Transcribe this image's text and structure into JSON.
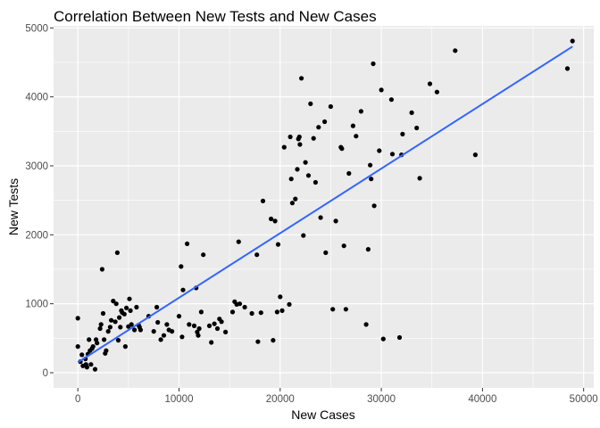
{
  "chart_data": {
    "type": "scatter",
    "title": "Correlation Between New Tests and New Cases",
    "xlabel": "New Cases",
    "ylabel": "New Tests",
    "xlim": [
      -2400,
      51000
    ],
    "ylim": [
      -220,
      5030
    ],
    "x_ticks": [
      0,
      10000,
      20000,
      30000,
      40000,
      50000
    ],
    "y_ticks": [
      0,
      1000,
      2000,
      3000,
      4000,
      5000
    ],
    "x_tick_labels": [
      "0",
      "10000",
      "20000",
      "30000",
      "40000",
      "50000"
    ],
    "y_tick_labels": [
      "0",
      "1000",
      "2000",
      "3000",
      "4000",
      "5000"
    ],
    "grid": true,
    "background": "#EBEBEB",
    "point_color": "#000000",
    "line_color": "#3366FF",
    "trend_line": {
      "x": [
        0,
        48900
      ],
      "y": [
        150,
        4730
      ]
    },
    "points": [
      [
        0,
        790
      ],
      [
        0,
        380
      ],
      [
        250,
        160
      ],
      [
        400,
        260
      ],
      [
        500,
        100
      ],
      [
        750,
        200
      ],
      [
        800,
        120
      ],
      [
        900,
        80
      ],
      [
        1000,
        270
      ],
      [
        1100,
        480
      ],
      [
        1200,
        320
      ],
      [
        1300,
        120
      ],
      [
        1400,
        350
      ],
      [
        1500,
        380
      ],
      [
        1700,
        50
      ],
      [
        1800,
        480
      ],
      [
        1900,
        430
      ],
      [
        2200,
        640
      ],
      [
        2300,
        700
      ],
      [
        2400,
        1500
      ],
      [
        2500,
        860
      ],
      [
        2600,
        480
      ],
      [
        2700,
        280
      ],
      [
        2800,
        320
      ],
      [
        3000,
        600
      ],
      [
        3200,
        660
      ],
      [
        3300,
        760
      ],
      [
        3500,
        1040
      ],
      [
        3700,
        740
      ],
      [
        3800,
        1000
      ],
      [
        3900,
        1740
      ],
      [
        4000,
        470
      ],
      [
        4100,
        800
      ],
      [
        4200,
        660
      ],
      [
        4300,
        900
      ],
      [
        4400,
        870
      ],
      [
        4600,
        850
      ],
      [
        4700,
        380
      ],
      [
        4800,
        940
      ],
      [
        5000,
        670
      ],
      [
        5100,
        1070
      ],
      [
        5200,
        900
      ],
      [
        5300,
        700
      ],
      [
        5600,
        620
      ],
      [
        5800,
        950
      ],
      [
        6000,
        690
      ],
      [
        6100,
        660
      ],
      [
        6200,
        620
      ],
      [
        7000,
        820
      ],
      [
        7500,
        600
      ],
      [
        7800,
        950
      ],
      [
        7900,
        730
      ],
      [
        8200,
        480
      ],
      [
        8500,
        540
      ],
      [
        8800,
        700
      ],
      [
        9000,
        620
      ],
      [
        9300,
        600
      ],
      [
        10000,
        820
      ],
      [
        10200,
        1540
      ],
      [
        10300,
        520
      ],
      [
        10400,
        1200
      ],
      [
        10800,
        1870
      ],
      [
        11000,
        700
      ],
      [
        11500,
        680
      ],
      [
        11700,
        1230
      ],
      [
        11800,
        590
      ],
      [
        11900,
        540
      ],
      [
        12000,
        640
      ],
      [
        12200,
        880
      ],
      [
        12400,
        1710
      ],
      [
        13000,
        680
      ],
      [
        13200,
        440
      ],
      [
        13500,
        710
      ],
      [
        13800,
        640
      ],
      [
        14000,
        780
      ],
      [
        14200,
        740
      ],
      [
        14600,
        590
      ],
      [
        15300,
        880
      ],
      [
        15500,
        1030
      ],
      [
        15700,
        990
      ],
      [
        15900,
        1900
      ],
      [
        16000,
        1000
      ],
      [
        16500,
        950
      ],
      [
        17200,
        860
      ],
      [
        17700,
        1710
      ],
      [
        17800,
        450
      ],
      [
        18100,
        870
      ],
      [
        18300,
        2490
      ],
      [
        19100,
        2230
      ],
      [
        19300,
        470
      ],
      [
        19500,
        2200
      ],
      [
        19700,
        880
      ],
      [
        19800,
        1860
      ],
      [
        20000,
        1100
      ],
      [
        20200,
        900
      ],
      [
        20400,
        3270
      ],
      [
        20900,
        990
      ],
      [
        21000,
        3420
      ],
      [
        21100,
        2810
      ],
      [
        21200,
        2460
      ],
      [
        21500,
        2520
      ],
      [
        21700,
        2950
      ],
      [
        21800,
        3390
      ],
      [
        21900,
        3420
      ],
      [
        21950,
        3310
      ],
      [
        22100,
        4270
      ],
      [
        22300,
        1990
      ],
      [
        22500,
        3050
      ],
      [
        22800,
        2860
      ],
      [
        23000,
        3900
      ],
      [
        23300,
        3400
      ],
      [
        23500,
        2760
      ],
      [
        23800,
        3560
      ],
      [
        24000,
        2250
      ],
      [
        24400,
        3640
      ],
      [
        24500,
        1740
      ],
      [
        25000,
        3860
      ],
      [
        25200,
        920
      ],
      [
        25500,
        2200
      ],
      [
        26000,
        3270
      ],
      [
        26100,
        3250
      ],
      [
        26300,
        1840
      ],
      [
        26500,
        920
      ],
      [
        26800,
        2890
      ],
      [
        27200,
        3580
      ],
      [
        27500,
        3430
      ],
      [
        28000,
        3790
      ],
      [
        28500,
        700
      ],
      [
        28700,
        1790
      ],
      [
        28900,
        3010
      ],
      [
        29000,
        2810
      ],
      [
        29200,
        4480
      ],
      [
        29300,
        2420
      ],
      [
        29800,
        3220
      ],
      [
        30000,
        4100
      ],
      [
        30200,
        490
      ],
      [
        31000,
        3960
      ],
      [
        31100,
        3170
      ],
      [
        31800,
        510
      ],
      [
        32000,
        3160
      ],
      [
        32100,
        3460
      ],
      [
        33000,
        3770
      ],
      [
        33500,
        3550
      ],
      [
        33800,
        2820
      ],
      [
        34800,
        4190
      ],
      [
        35500,
        4070
      ],
      [
        37300,
        4670
      ],
      [
        39300,
        3160
      ],
      [
        48400,
        4410
      ],
      [
        48900,
        4810
      ]
    ]
  }
}
